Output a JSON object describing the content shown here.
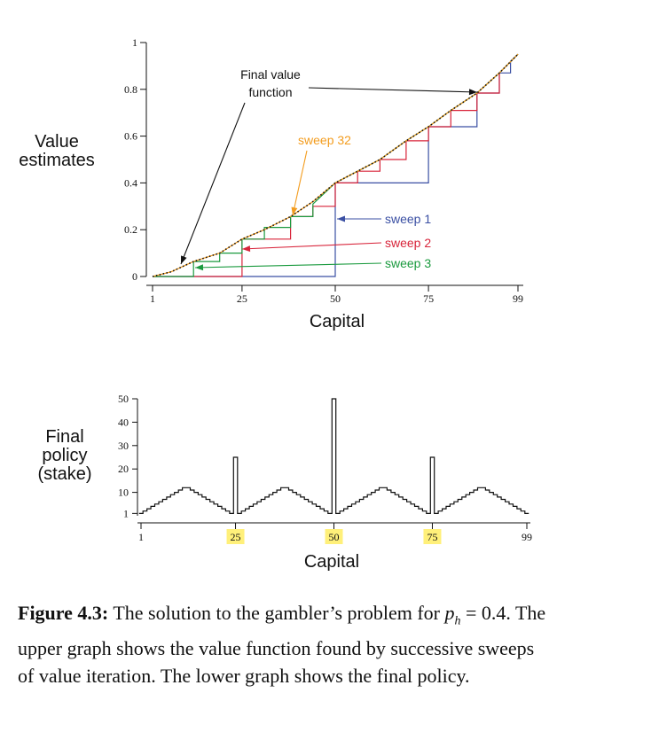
{
  "chart_data": [
    {
      "type": "line",
      "ylabel": "Value\nestimates",
      "xlabel": "Capital",
      "xticks": [
        "1",
        "25",
        "50",
        "75",
        "99"
      ],
      "yticks": [
        "0",
        "0.2",
        "0.4",
        "0.6",
        "0.8",
        "1"
      ],
      "xlim": [
        1,
        99
      ],
      "ylim": [
        0,
        1
      ],
      "grid": false,
      "annotations": [
        {
          "text": "Final value\nfunction",
          "color": "#111111"
        },
        {
          "text": "sweep 32",
          "color": "#f39c1e"
        },
        {
          "text": "sweep 1",
          "color": "#3a4fa3"
        },
        {
          "text": "sweep 2",
          "color": "#d8243a"
        },
        {
          "text": "sweep 3",
          "color": "#1a9a3e"
        }
      ],
      "series": [
        {
          "name": "sweep 1",
          "color": "#3a4fa3",
          "x": [
            1,
            50,
            50,
            75,
            75,
            88,
            88,
            94,
            94,
            97,
            97,
            99
          ],
          "y": [
            0,
            0,
            0.4,
            0.4,
            0.64,
            0.64,
            0.784,
            0.784,
            0.87,
            0.87,
            0.92,
            0.95
          ]
        },
        {
          "name": "sweep 2",
          "color": "#d8243a",
          "x": [
            1,
            25,
            25,
            38,
            38,
            44,
            44,
            50,
            50,
            56,
            56,
            62,
            62,
            69,
            69,
            75,
            75,
            81,
            81,
            88,
            88,
            94,
            94,
            99
          ],
          "y": [
            0,
            0,
            0.16,
            0.16,
            0.256,
            0.256,
            0.3,
            0.3,
            0.4,
            0.4,
            0.45,
            0.45,
            0.5,
            0.5,
            0.58,
            0.58,
            0.64,
            0.64,
            0.71,
            0.71,
            0.784,
            0.784,
            0.87,
            0.95
          ]
        },
        {
          "name": "sweep 3",
          "color": "#1a9a3e",
          "x": [
            1,
            12,
            12,
            19,
            19,
            25,
            25,
            31,
            31,
            38,
            38,
            44,
            44,
            50,
            56,
            62,
            69,
            75,
            81,
            88,
            94,
            99
          ],
          "y": [
            0,
            0,
            0.064,
            0.064,
            0.1,
            0.1,
            0.16,
            0.16,
            0.21,
            0.21,
            0.256,
            0.256,
            0.31,
            0.4,
            0.45,
            0.5,
            0.58,
            0.64,
            0.71,
            0.784,
            0.87,
            0.95
          ]
        },
        {
          "name": "sweep 32",
          "color": "#f39c1e",
          "x": [
            1,
            6,
            12,
            19,
            25,
            31,
            38,
            44,
            50,
            56,
            62,
            69,
            75,
            81,
            88,
            94,
            99
          ],
          "y": [
            0,
            0.02,
            0.064,
            0.1,
            0.16,
            0.2,
            0.256,
            0.32,
            0.4,
            0.45,
            0.5,
            0.58,
            0.64,
            0.71,
            0.784,
            0.87,
            0.95
          ]
        },
        {
          "name": "Final value function",
          "color": "#111111",
          "dotted": true,
          "x": [
            1,
            6,
            12,
            19,
            25,
            31,
            38,
            44,
            50,
            56,
            62,
            69,
            75,
            81,
            88,
            94,
            99
          ],
          "y": [
            0,
            0.02,
            0.064,
            0.1,
            0.16,
            0.2,
            0.256,
            0.32,
            0.4,
            0.45,
            0.5,
            0.58,
            0.64,
            0.71,
            0.784,
            0.87,
            0.95
          ]
        }
      ]
    },
    {
      "type": "line",
      "ylabel": "Final\npolicy\n(stake)",
      "xlabel": "Capital",
      "xticks": [
        "1",
        "25",
        "50",
        "75",
        "99"
      ],
      "highlighted_xticks": [
        "25",
        "50",
        "75"
      ],
      "highlight_color": "#fff07a",
      "yticks": [
        "1",
        "10",
        "20",
        "30",
        "40",
        "50"
      ],
      "xlim": [
        1,
        99
      ],
      "ylim": [
        0,
        50
      ],
      "grid": false,
      "series": [
        {
          "name": "",
          "color": "#111111",
          "step": true,
          "x": [
            1,
            2,
            3,
            4,
            5,
            6,
            7,
            8,
            9,
            10,
            11,
            12,
            13,
            14,
            15,
            16,
            17,
            18,
            19,
            20,
            21,
            22,
            23,
            24,
            25,
            26,
            27,
            28,
            29,
            30,
            31,
            32,
            33,
            34,
            35,
            36,
            37,
            38,
            39,
            40,
            41,
            42,
            43,
            44,
            45,
            46,
            47,
            48,
            49,
            50,
            51,
            52,
            53,
            54,
            55,
            56,
            57,
            58,
            59,
            60,
            61,
            62,
            63,
            64,
            65,
            66,
            67,
            68,
            69,
            70,
            71,
            72,
            73,
            74,
            75,
            76,
            77,
            78,
            79,
            80,
            81,
            82,
            83,
            84,
            85,
            86,
            87,
            88,
            89,
            90,
            91,
            92,
            93,
            94,
            95,
            96,
            97,
            98,
            99
          ],
          "values": [
            1,
            2,
            3,
            4,
            5,
            6,
            7,
            8,
            9,
            10,
            11,
            12,
            12,
            11,
            10,
            9,
            8,
            7,
            6,
            5,
            4,
            3,
            2,
            1,
            25,
            1,
            2,
            3,
            4,
            5,
            6,
            7,
            8,
            9,
            10,
            11,
            12,
            12,
            11,
            10,
            9,
            8,
            7,
            6,
            5,
            4,
            3,
            2,
            1,
            50,
            1,
            2,
            3,
            4,
            5,
            6,
            7,
            8,
            9,
            10,
            11,
            12,
            12,
            11,
            10,
            9,
            8,
            7,
            6,
            5,
            4,
            3,
            2,
            1,
            25,
            1,
            2,
            3,
            4,
            5,
            6,
            7,
            8,
            9,
            10,
            11,
            12,
            12,
            11,
            10,
            9,
            8,
            7,
            6,
            5,
            4,
            3,
            2,
            1
          ]
        }
      ]
    }
  ],
  "caption": {
    "label": "Figure 4.3:",
    "text": " The solution to the gambler’s problem for p_h = 0.4. The upper graph shows the value function found by successive sweeps of value iteration. The lower graph shows the final policy."
  }
}
